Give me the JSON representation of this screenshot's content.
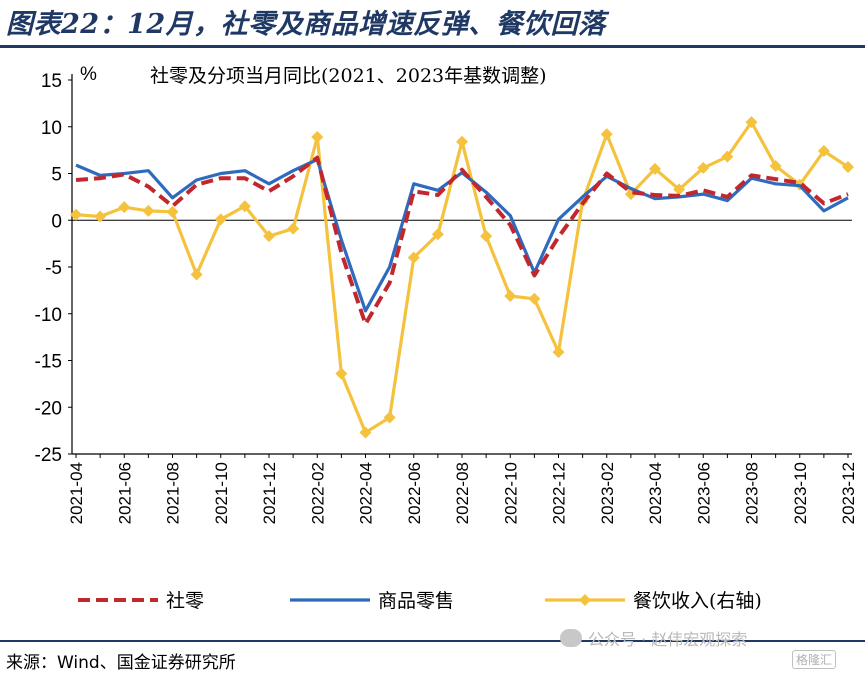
{
  "figure_title": "图表22：12月，社零及商品增速反弹、餐饮回落",
  "source": "来源：Wind、国金证券研究所",
  "watermark": "公众号 · 赵伟宏观探索",
  "watermark_brand": "格隆汇",
  "colors": {
    "title": "#1f3864",
    "retail_total": "#c0282d",
    "goods_retail": "#2e6bbf",
    "catering": "#f5c23e"
  },
  "chart_data": {
    "type": "line",
    "title": "社零及分项当月同比(2021、2023年基数调整)",
    "ylabel": "%",
    "ylim": [
      -25,
      15
    ],
    "yticks": [
      15,
      10,
      5,
      0,
      -5,
      -10,
      -15,
      -20,
      -25
    ],
    "x": [
      "2021-04",
      "2021-05",
      "2021-06",
      "2021-07",
      "2021-08",
      "2021-09",
      "2021-10",
      "2021-11",
      "2021-12",
      "2022-01",
      "2022-02",
      "2022-03",
      "2022-04",
      "2022-05",
      "2022-06",
      "2022-07",
      "2022-08",
      "2022-09",
      "2022-10",
      "2022-11",
      "2022-12",
      "2023-01",
      "2023-02",
      "2023-03",
      "2023-04",
      "2023-05",
      "2023-06",
      "2023-07",
      "2023-08",
      "2023-09",
      "2023-10",
      "2023-11",
      "2023-12"
    ],
    "xtick_labels": [
      "2021-04",
      "2021-06",
      "2021-08",
      "2021-10",
      "2021-12",
      "2022-02",
      "2022-04",
      "2022-06",
      "2022-08",
      "2022-10",
      "2022-12",
      "2023-02",
      "2023-04",
      "2023-06",
      "2023-08",
      "2023-10",
      "2023-12"
    ],
    "series": [
      {
        "name": "社零",
        "style": "dashed",
        "color": "#c0282d",
        "values": [
          4.3,
          4.5,
          4.9,
          3.6,
          1.5,
          3.8,
          4.5,
          4.5,
          3.1,
          4.7,
          6.7,
          -3.5,
          -11.1,
          -6.7,
          3.1,
          2.7,
          5.4,
          2.5,
          -0.5,
          -5.9,
          -1.8,
          1.8,
          5.0,
          3.0,
          2.7,
          2.6,
          3.2,
          2.5,
          4.8,
          4.4,
          4.0,
          1.8,
          2.8
        ]
      },
      {
        "name": "商品零售",
        "style": "solid",
        "color": "#2e6bbf",
        "values": [
          5.9,
          4.8,
          5.0,
          5.3,
          2.4,
          4.3,
          5.0,
          5.3,
          3.9,
          5.3,
          6.5,
          -2.1,
          -9.7,
          -5.0,
          3.9,
          3.2,
          5.1,
          3.0,
          0.5,
          -5.6,
          0.1,
          2.5,
          4.7,
          3.4,
          2.3,
          2.5,
          2.8,
          2.1,
          4.5,
          3.9,
          3.7,
          1.0,
          2.4
        ]
      },
      {
        "name": "餐饮收入(右轴)",
        "style": "solid-marker",
        "color": "#f5c23e",
        "values": [
          0.6,
          0.4,
          1.4,
          1.0,
          0.9,
          -5.8,
          0.1,
          1.5,
          -1.7,
          -0.9,
          8.9,
          -16.4,
          -22.7,
          -21.1,
          -4.0,
          -1.5,
          8.4,
          -1.7,
          -8.1,
          -8.4,
          -14.1,
          2.0,
          9.2,
          2.8,
          5.5,
          3.3,
          5.6,
          6.8,
          10.5,
          5.8,
          3.8,
          7.4,
          5.7
        ]
      }
    ],
    "legend": [
      "社零",
      "商品零售",
      "餐饮收入(右轴)"
    ],
    "legend_position": "bottom",
    "grid": false
  }
}
